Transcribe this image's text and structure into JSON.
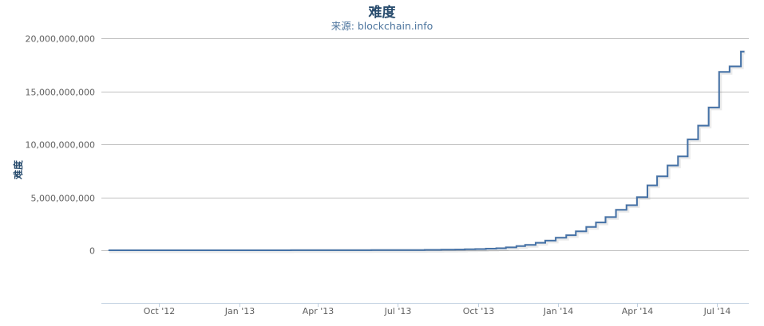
{
  "chart_data": {
    "type": "line",
    "step": true,
    "title": "难度",
    "subtitle": "来源: blockchain.info",
    "ylabel": "难度",
    "xlabel": "",
    "ylim": [
      -5000000000,
      20000000000
    ],
    "xlim": [
      "2012-07-27",
      "2014-08-07"
    ],
    "grid": true,
    "legend": "none",
    "color": "#4572a7",
    "yticks": [
      {
        "value": 0,
        "label": "0"
      },
      {
        "value": 5000000000,
        "label": "5,000,000,000"
      },
      {
        "value": 10000000000,
        "label": "10,000,000,000"
      },
      {
        "value": 15000000000,
        "label": "15,000,000,000"
      },
      {
        "value": 20000000000,
        "label": "20,000,000,000"
      }
    ],
    "xticks": [
      {
        "date": "2012-10-01",
        "label": "Oct '12"
      },
      {
        "date": "2013-01-01",
        "label": "Jan '13"
      },
      {
        "date": "2013-04-01",
        "label": "Apr '13"
      },
      {
        "date": "2013-07-01",
        "label": "Jul '13"
      },
      {
        "date": "2013-10-01",
        "label": "Oct '13"
      },
      {
        "date": "2014-01-01",
        "label": "Jan '14"
      },
      {
        "date": "2014-04-01",
        "label": "Apr '14"
      },
      {
        "date": "2014-07-01",
        "label": "Jul '14"
      }
    ],
    "points": [
      [
        "2012-08-04",
        2440000
      ],
      [
        "2012-09-01",
        2690000
      ],
      [
        "2012-10-01",
        3000000
      ],
      [
        "2012-11-01",
        3300000
      ],
      [
        "2012-12-01",
        3440000
      ],
      [
        "2013-01-01",
        3280000
      ],
      [
        "2013-02-01",
        3650000
      ],
      [
        "2013-03-01",
        4370000
      ],
      [
        "2013-04-01",
        7670000
      ],
      [
        "2013-05-01",
        11190000
      ],
      [
        "2013-06-01",
        15600000
      ],
      [
        "2013-07-01",
        26160000
      ],
      [
        "2013-08-01",
        37390000
      ],
      [
        "2013-08-20",
        50800000
      ],
      [
        "2013-09-05",
        65750000
      ],
      [
        "2013-09-16",
        86930000
      ],
      [
        "2013-09-28",
        112600000
      ],
      [
        "2013-10-10",
        148800000
      ],
      [
        "2013-10-22",
        189000000
      ],
      [
        "2013-11-02",
        267700000
      ],
      [
        "2013-11-14",
        390600000
      ],
      [
        "2013-11-24",
        510900000
      ],
      [
        "2013-12-06",
        707400000
      ],
      [
        "2013-12-17",
        908000000
      ],
      [
        "2013-12-29",
        1180900000
      ],
      [
        "2014-01-10",
        1418500000
      ],
      [
        "2014-01-21",
        1789500000
      ],
      [
        "2014-02-02",
        2193800000
      ],
      [
        "2014-02-13",
        2621400000
      ],
      [
        "2014-02-24",
        3129600000
      ],
      [
        "2014-03-08",
        3815800000
      ],
      [
        "2014-03-20",
        4250200000
      ],
      [
        "2014-04-01",
        5006100000
      ],
      [
        "2014-04-13",
        6119700000
      ],
      [
        "2014-04-24",
        6978800000
      ],
      [
        "2014-05-06",
        8000900000
      ],
      [
        "2014-05-18",
        8853400000
      ],
      [
        "2014-05-29",
        10455500000
      ],
      [
        "2014-06-10",
        11756000000
      ],
      [
        "2014-06-22",
        13462500000
      ],
      [
        "2014-07-04",
        16818100000
      ],
      [
        "2014-07-16",
        17336100000
      ],
      [
        "2014-07-29",
        18736400000
      ],
      [
        "2014-08-02",
        18736400000
      ]
    ]
  }
}
